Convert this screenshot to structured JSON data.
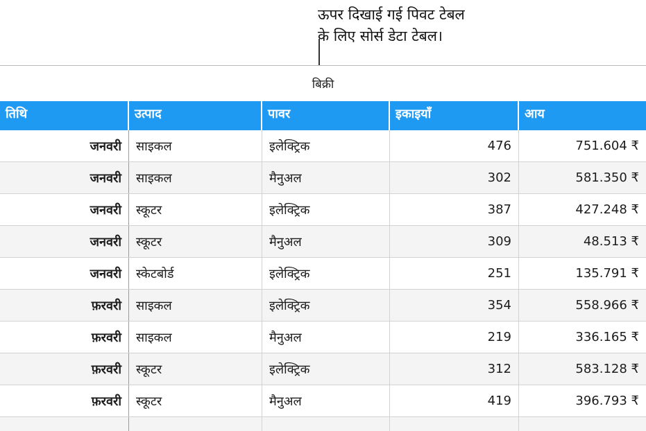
{
  "callout": {
    "line1": "ऊपर दिखाई गई पिवट टेबल",
    "line2": "के लिए सोर्स डेटा टेबल।"
  },
  "table": {
    "title": "बिक्री",
    "headers": [
      "तिथि",
      "उत्पाद",
      "पावर",
      "इकाइयाँ",
      "आय"
    ],
    "rows": [
      [
        "जनवरी",
        "साइकल",
        "इलेक्ट्रिक",
        "476",
        "751.604 ₹"
      ],
      [
        "जनवरी",
        "साइकल",
        "मैनुअल",
        "302",
        "581.350 ₹"
      ],
      [
        "जनवरी",
        "स्कूटर",
        "इलेक्ट्रिक",
        "387",
        "427.248 ₹"
      ],
      [
        "जनवरी",
        "स्कूटर",
        "मैनुअल",
        "309",
        "48.513 ₹"
      ],
      [
        "जनवरी",
        "स्केटबोर्ड",
        "इलेक्ट्रिक",
        "251",
        "135.791 ₹"
      ],
      [
        "फ़रवरी",
        "साइकल",
        "इलेक्ट्रिक",
        "354",
        "558.966 ₹"
      ],
      [
        "फ़रवरी",
        "साइकल",
        "मैनुअल",
        "219",
        "336.165 ₹"
      ],
      [
        "फ़रवरी",
        "स्कूटर",
        "इलेक्ट्रिक",
        "312",
        "583.128 ₹"
      ],
      [
        "फ़रवरी",
        "स्कूटर",
        "मैनुअल",
        "419",
        "396.793 ₹"
      ]
    ]
  },
  "colors": {
    "header_bg": "#1f9af2",
    "header_text": "#ffffff",
    "alt_row": "#f4f4f4"
  }
}
